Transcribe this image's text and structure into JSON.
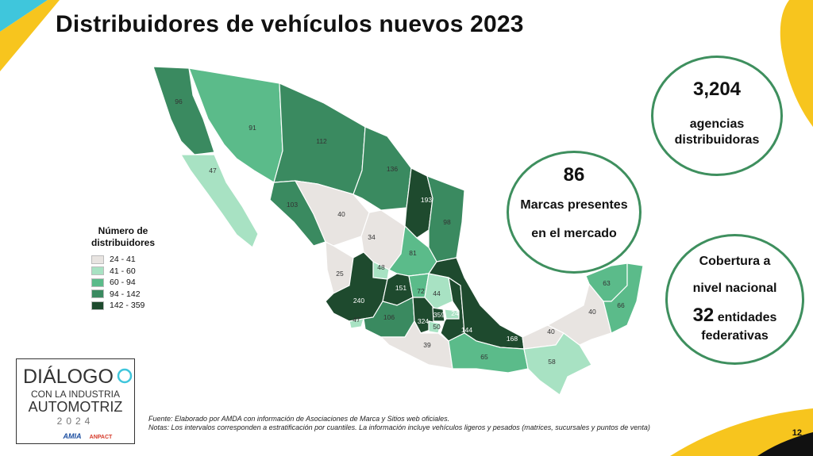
{
  "title": "Distribuidores de vehículos nuevos 2023",
  "stats": {
    "agencies_value": "3,204",
    "agencies_label_1": "agencias",
    "agencies_label_2": "distribuidoras",
    "brands_value": "86",
    "brands_label_1": "Marcas presentes",
    "brands_label_2": "en el mercado",
    "coverage_label_1": "Cobertura a",
    "coverage_label_2": "nivel nacional",
    "coverage_value": "32",
    "coverage_label_3": "entidades",
    "coverage_label_4": "federativas"
  },
  "legend": {
    "title_1": "Número de",
    "title_2": "distribuidores",
    "items": [
      {
        "label": "24 - 41",
        "color": "#e8e4e1"
      },
      {
        "label": "41 - 60",
        "color": "#a8e2c3"
      },
      {
        "label": "60 - 94",
        "color": "#5bbb8a"
      },
      {
        "label": "94 - 142",
        "color": "#3a8a60"
      },
      {
        "label": "142 - 359",
        "color": "#1e4a2e"
      }
    ]
  },
  "map_labels": {
    "bc": "96",
    "bcs": "47",
    "son": "91",
    "chih": "112",
    "coah": "136",
    "nl": "193",
    "tamps": "98",
    "sin": "103",
    "dgo": "40",
    "zac": "34",
    "nay": "25",
    "ags": "48",
    "slp": "81",
    "jal": "240",
    "gto": "151",
    "qro": "72",
    "hgo": "44",
    "col": "47",
    "mich": "106",
    "edomex": "324",
    "cdmx": "359",
    "mor": "50",
    "tlax": "24",
    "pue": "144",
    "ver": "168",
    "gro": "39",
    "oax": "65",
    "tab": "40",
    "chis": "58",
    "camp": "40",
    "yuc": "63",
    "qroo": "66"
  },
  "logo": {
    "line1": "DIÁLOGO",
    "line2": "CON LA INDUSTRIA",
    "line3": "AUTOMOTRIZ",
    "year": "2024",
    "sponsor1": "AMIA",
    "sponsor2": "ANPACT"
  },
  "notes": {
    "source": "Fuente: Elaborado por AMDA con información de Asociaciones de Marca y Sitios web oficiales.",
    "note": "Notas: Los intervalos corresponden a estratificación por cuantiles. La información incluye vehículos ligeros y pesados (matrices, sucursales y puntos de venta)"
  },
  "page_number": "12",
  "colors": {
    "range_24_41": "#e8e4e1",
    "range_41_60": "#a8e2c3",
    "range_60_94": "#5bbb8a",
    "range_94_142": "#3a8a60",
    "range_142_359": "#1e4a2e",
    "circle_border": "#3e8f5e",
    "accent_yellow": "#f7c51e",
    "accent_cyan": "#3fc6dc"
  }
}
